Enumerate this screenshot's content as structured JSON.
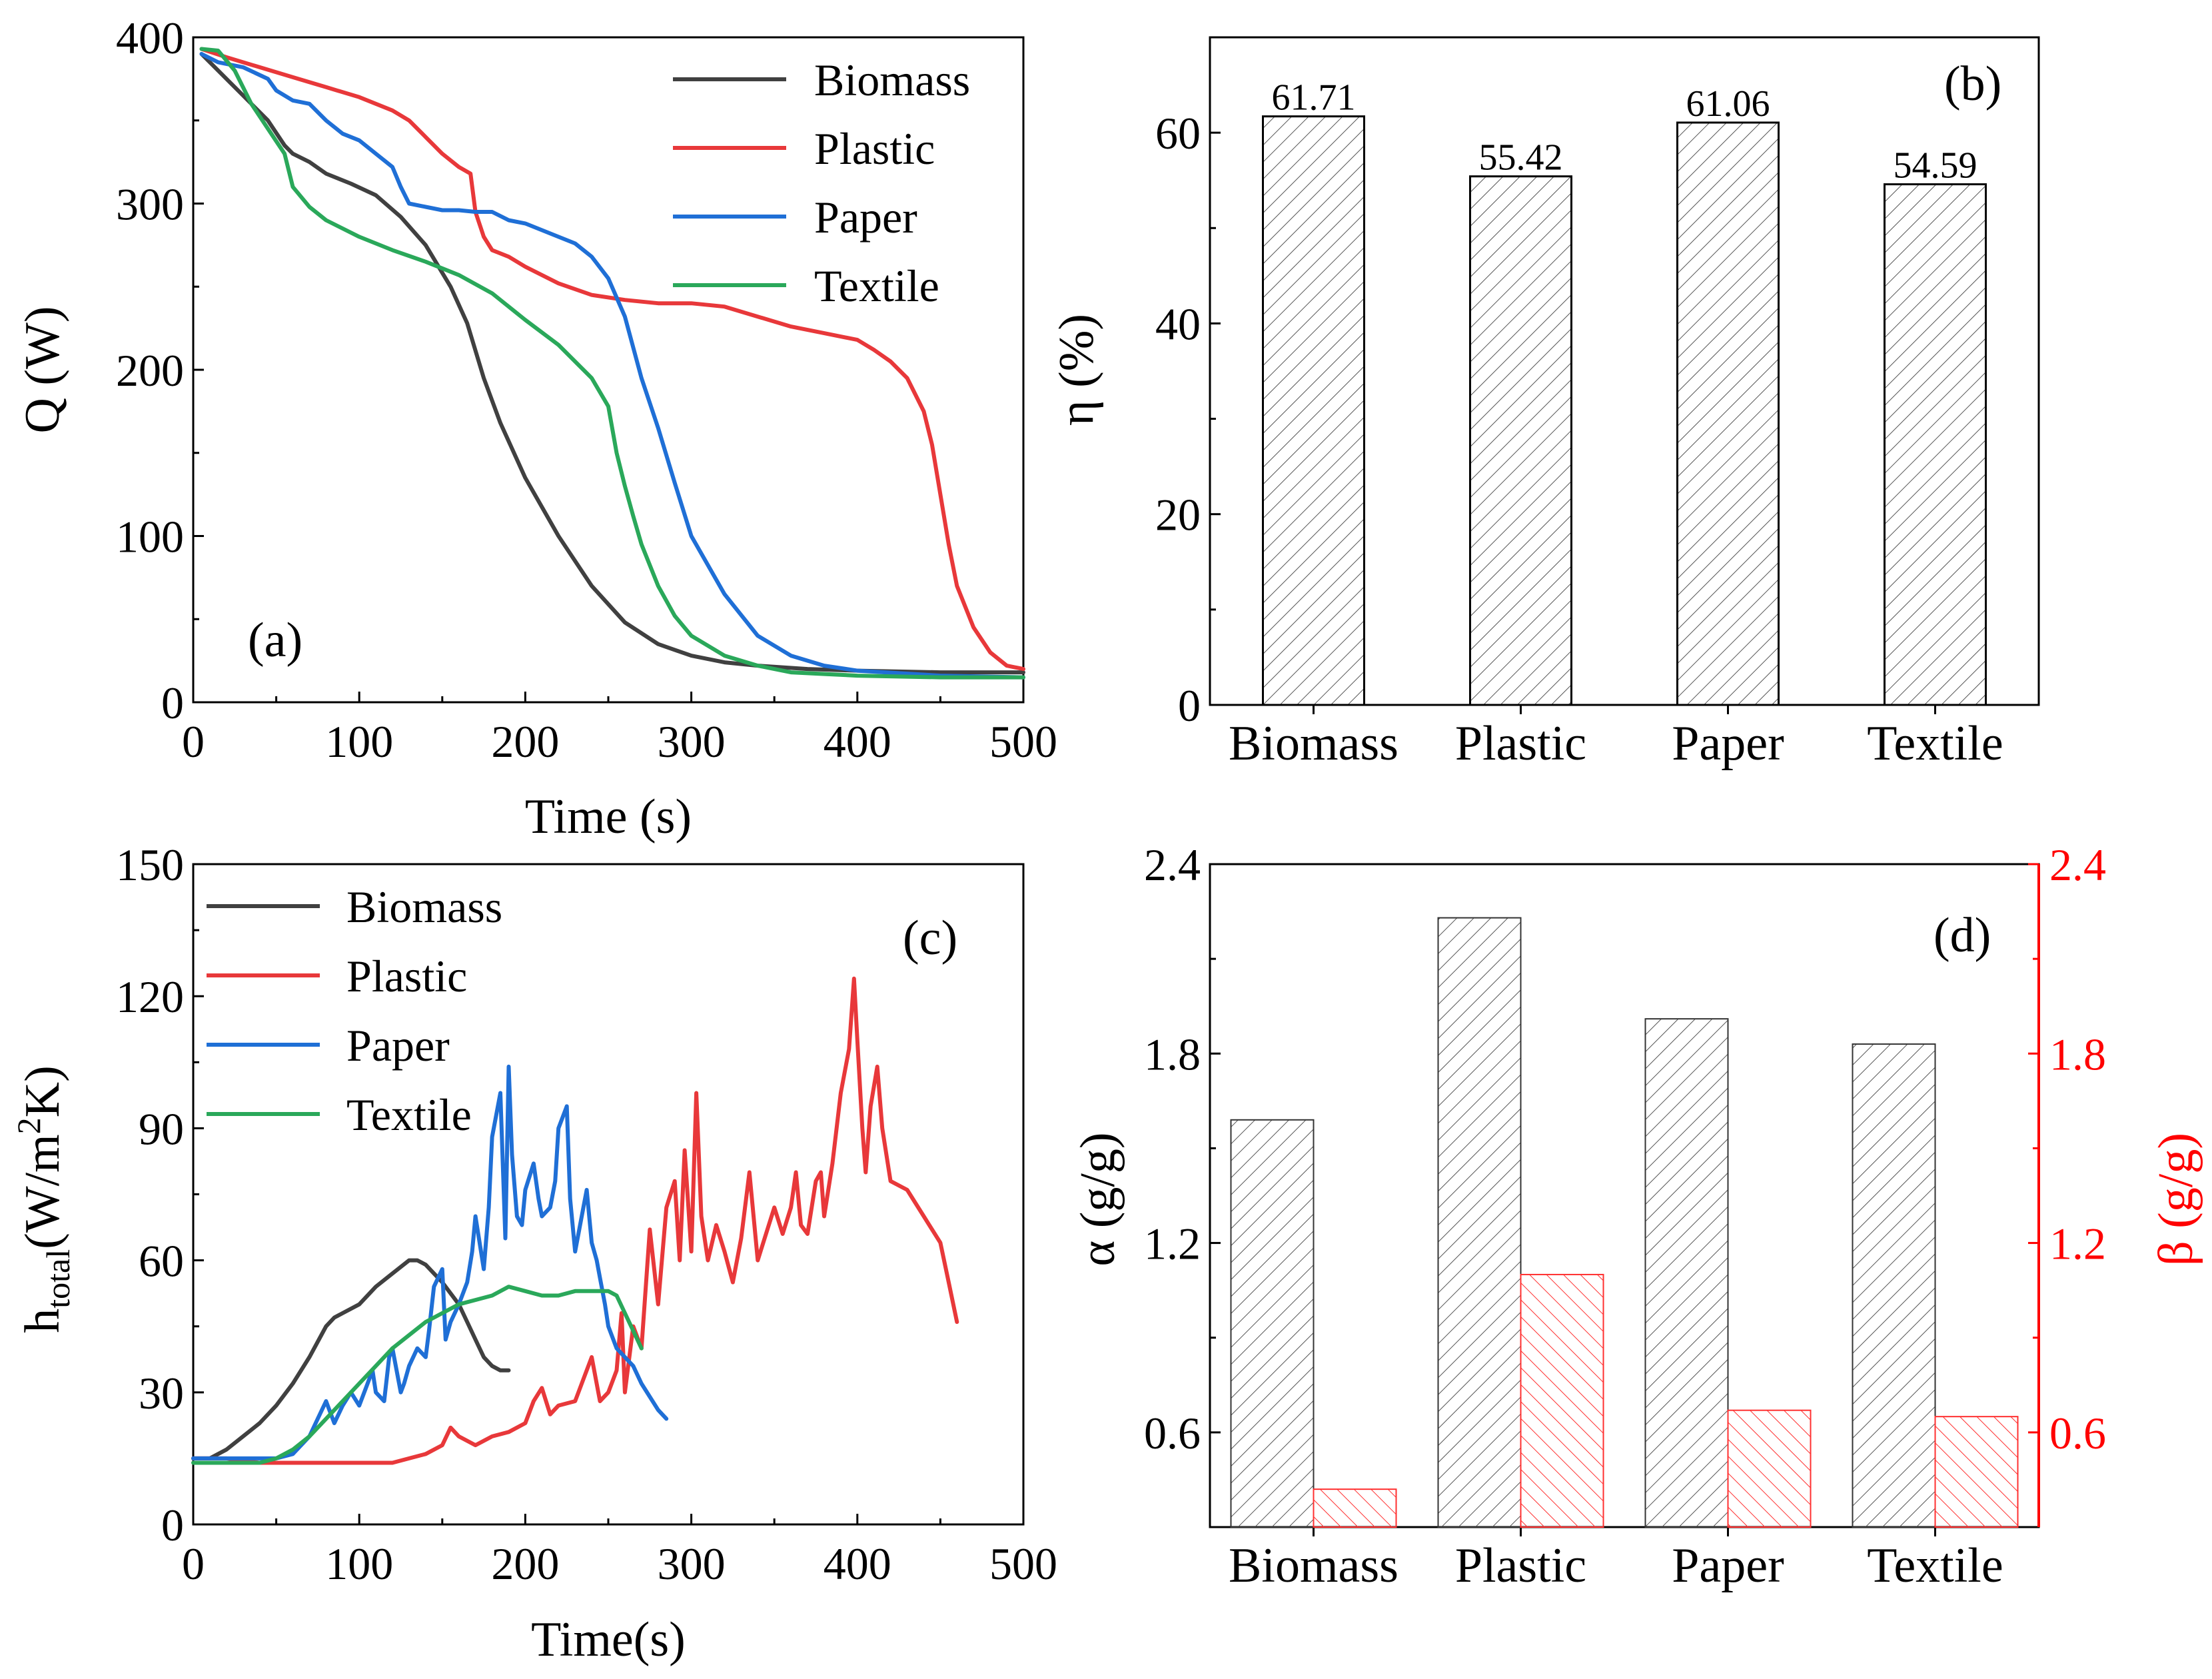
{
  "colors": {
    "biomass": "#404040",
    "plastic": "#e8383a",
    "paper": "#1f6fd6",
    "textile": "#2aa85a",
    "beta_axis": "#ff0000",
    "bar_edge": "#000000"
  },
  "chart_data": [
    {
      "id": "a",
      "type": "line",
      "panel_label": "(a)",
      "xlabel": "Time (s)",
      "ylabel": "Q (W)",
      "xlim": [
        0,
        500
      ],
      "ylim": [
        0,
        400
      ],
      "xticks": [
        0,
        100,
        200,
        300,
        400,
        500
      ],
      "yticks": [
        0,
        100,
        200,
        300,
        400
      ],
      "xtick_labels": [
        "0",
        "100",
        "200",
        "300",
        "400",
        "500"
      ],
      "ytick_labels": [
        "0",
        "100",
        "200",
        "300",
        "400"
      ],
      "legend": [
        "Biomass",
        "Plastic",
        "Paper",
        "Textile"
      ],
      "series": [
        {
          "name": "Biomass",
          "color_key": "biomass",
          "x": [
            5,
            15,
            30,
            45,
            55,
            60,
            70,
            80,
            95,
            110,
            125,
            140,
            155,
            165,
            175,
            185,
            200,
            220,
            240,
            260,
            280,
            300,
            320,
            340,
            370,
            400,
            450,
            500
          ],
          "y": [
            390,
            380,
            365,
            350,
            335,
            330,
            325,
            318,
            312,
            305,
            292,
            275,
            250,
            228,
            195,
            168,
            135,
            100,
            70,
            48,
            35,
            28,
            24,
            22,
            20,
            19,
            18,
            18
          ]
        },
        {
          "name": "Plastic",
          "color_key": "plastic",
          "x": [
            5,
            20,
            40,
            60,
            80,
            100,
            110,
            120,
            130,
            140,
            150,
            160,
            167,
            170,
            175,
            180,
            190,
            200,
            220,
            240,
            260,
            280,
            300,
            320,
            340,
            360,
            380,
            400,
            410,
            420,
            430,
            440,
            445,
            450,
            455,
            460,
            470,
            480,
            490,
            500
          ],
          "y": [
            393,
            388,
            382,
            376,
            370,
            364,
            360,
            356,
            350,
            340,
            330,
            322,
            318,
            295,
            280,
            272,
            268,
            262,
            252,
            245,
            242,
            240,
            240,
            238,
            232,
            226,
            222,
            218,
            212,
            205,
            195,
            175,
            155,
            125,
            95,
            70,
            45,
            30,
            22,
            20
          ]
        },
        {
          "name": "Paper",
          "color_key": "paper",
          "x": [
            5,
            15,
            30,
            45,
            50,
            60,
            70,
            80,
            90,
            100,
            110,
            120,
            125,
            130,
            140,
            150,
            160,
            170,
            180,
            190,
            200,
            210,
            220,
            230,
            240,
            250,
            260,
            270,
            280,
            290,
            300,
            320,
            340,
            360,
            380,
            400,
            450,
            500
          ],
          "y": [
            390,
            385,
            382,
            375,
            368,
            362,
            360,
            350,
            342,
            338,
            330,
            322,
            310,
            300,
            298,
            296,
            296,
            295,
            295,
            290,
            288,
            284,
            280,
            276,
            268,
            255,
            232,
            195,
            165,
            132,
            100,
            65,
            40,
            28,
            22,
            19,
            16,
            15
          ]
        },
        {
          "name": "Textile",
          "color_key": "textile",
          "x": [
            5,
            15,
            25,
            35,
            45,
            55,
            60,
            70,
            80,
            100,
            120,
            140,
            160,
            180,
            200,
            220,
            240,
            250,
            255,
            260,
            265,
            270,
            280,
            290,
            300,
            320,
            340,
            360,
            380,
            400,
            450,
            500
          ],
          "y": [
            393,
            392,
            380,
            360,
            345,
            330,
            310,
            298,
            290,
            280,
            272,
            265,
            257,
            246,
            230,
            215,
            195,
            178,
            150,
            130,
            112,
            95,
            70,
            52,
            40,
            28,
            22,
            18,
            17,
            16,
            15,
            15
          ]
        }
      ]
    },
    {
      "id": "b",
      "type": "bar",
      "panel_label": "(b)",
      "xlabel": "",
      "ylabel": "η (%)",
      "ylim": [
        0,
        70
      ],
      "yticks": [
        0,
        20,
        40,
        60
      ],
      "ytick_labels": [
        "0",
        "20",
        "40",
        "60"
      ],
      "categories": [
        "Biomass",
        "Plastic",
        "Paper",
        "Textile"
      ],
      "values": [
        61.71,
        55.42,
        61.06,
        54.59
      ],
      "value_labels": [
        "61.71",
        "55.42",
        "61.06",
        "54.59"
      ]
    },
    {
      "id": "c",
      "type": "line",
      "panel_label": "(c)",
      "xlabel": "Time(s)",
      "ylabel_main": "h",
      "ylabel_sub": "total",
      "ylabel_rest": "(W/m",
      "ylabel_sup": "2",
      "ylabel_end": "K)",
      "xlim": [
        0,
        500
      ],
      "ylim": [
        0,
        150
      ],
      "xticks": [
        0,
        100,
        200,
        300,
        400,
        500
      ],
      "yticks": [
        0,
        30,
        60,
        90,
        120,
        150
      ],
      "xtick_labels": [
        "0",
        "100",
        "200",
        "300",
        "400",
        "500"
      ],
      "ytick_labels": [
        "0",
        "30",
        "60",
        "90",
        "120",
        "150"
      ],
      "legend": [
        "Biomass",
        "Plastic",
        "Paper",
        "Textile"
      ],
      "series": [
        {
          "name": "Biomass",
          "color_key": "biomass",
          "x": [
            0,
            10,
            20,
            30,
            40,
            50,
            60,
            70,
            80,
            85,
            90,
            100,
            110,
            120,
            130,
            135,
            140,
            150,
            160,
            165,
            170,
            175,
            180,
            185,
            190
          ],
          "y": [
            15,
            15,
            17,
            20,
            23,
            27,
            32,
            38,
            45,
            47,
            48,
            50,
            54,
            57,
            60,
            60,
            59,
            55,
            50,
            46,
            42,
            38,
            36,
            35,
            35
          ]
        },
        {
          "name": "Plastic",
          "color_key": "plastic",
          "x": [
            0,
            20,
            40,
            60,
            80,
            100,
            120,
            130,
            140,
            150,
            155,
            160,
            170,
            180,
            190,
            200,
            205,
            210,
            215,
            220,
            230,
            235,
            240,
            245,
            250,
            255,
            258,
            260,
            265,
            270,
            275,
            280,
            285,
            290,
            293,
            296,
            300,
            303,
            306,
            310,
            315,
            320,
            325,
            330,
            335,
            340,
            345,
            350,
            355,
            360,
            363,
            366,
            370,
            375,
            378,
            380,
            385,
            390,
            395,
            398,
            400,
            403,
            405,
            408,
            412,
            415,
            420,
            430,
            440,
            450,
            455,
            460
          ],
          "y": [
            15,
            15,
            14,
            14,
            14,
            14,
            14,
            15,
            16,
            18,
            22,
            20,
            18,
            20,
            21,
            23,
            28,
            31,
            25,
            27,
            28,
            33,
            38,
            28,
            30,
            35,
            48,
            30,
            45,
            40,
            67,
            50,
            72,
            78,
            60,
            85,
            62,
            98,
            70,
            60,
            68,
            62,
            55,
            65,
            80,
            60,
            66,
            72,
            66,
            72,
            80,
            68,
            66,
            78,
            80,
            70,
            82,
            98,
            108,
            124,
            110,
            90,
            80,
            95,
            104,
            90,
            78,
            76,
            70,
            64,
            55,
            46
          ]
        },
        {
          "name": "Paper",
          "color_key": "paper",
          "x": [
            0,
            50,
            60,
            70,
            75,
            80,
            82,
            85,
            90,
            95,
            100,
            105,
            108,
            110,
            115,
            118,
            120,
            125,
            127,
            130,
            135,
            140,
            142,
            145,
            150,
            152,
            155,
            160,
            165,
            168,
            170,
            175,
            178,
            180,
            185,
            188,
            190,
            192,
            195,
            198,
            200,
            205,
            208,
            210,
            215,
            218,
            220,
            225,
            227,
            230,
            235,
            237,
            240,
            243,
            245,
            248,
            250,
            255,
            260,
            265,
            270,
            280,
            285
          ],
          "y": [
            15,
            15,
            16,
            20,
            24,
            28,
            26,
            23,
            27,
            30,
            27,
            32,
            35,
            30,
            28,
            38,
            40,
            30,
            32,
            36,
            40,
            38,
            44,
            54,
            58,
            42,
            46,
            50,
            55,
            62,
            70,
            58,
            72,
            88,
            98,
            65,
            104,
            84,
            70,
            68,
            76,
            82,
            74,
            70,
            72,
            78,
            90,
            95,
            74,
            62,
            72,
            76,
            64,
            60,
            56,
            50,
            45,
            40,
            38,
            36,
            32,
            26,
            24
          ]
        },
        {
          "name": "Textile",
          "color_key": "textile",
          "x": [
            0,
            20,
            40,
            50,
            60,
            70,
            80,
            90,
            100,
            110,
            120,
            130,
            140,
            150,
            160,
            170,
            180,
            190,
            200,
            210,
            220,
            230,
            240,
            250,
            255,
            260,
            265,
            270
          ],
          "y": [
            14,
            14,
            14,
            15,
            17,
            20,
            24,
            28,
            32,
            36,
            40,
            43,
            46,
            48,
            50,
            51,
            52,
            54,
            53,
            52,
            52,
            53,
            53,
            53,
            52,
            48,
            44,
            40
          ]
        }
      ]
    },
    {
      "id": "d",
      "type": "bar",
      "panel_label": "(d)",
      "ylabel_left": "α (g/g)",
      "ylabel_right": "β (g/g)",
      "ylim": [
        0.3,
        2.4
      ],
      "yticks": [
        0.6,
        1.2,
        1.8,
        2.4
      ],
      "ytick_labels": [
        "0.6",
        "1.2",
        "1.8",
        "2.4"
      ],
      "categories": [
        "Biomass",
        "Plastic",
        "Paper",
        "Textile"
      ],
      "series": [
        {
          "name": "α",
          "axis": "left",
          "values": [
            1.59,
            2.23,
            1.91,
            1.83
          ]
        },
        {
          "name": "β",
          "axis": "right",
          "values": [
            0.42,
            1.1,
            0.67,
            0.65
          ]
        }
      ]
    }
  ]
}
